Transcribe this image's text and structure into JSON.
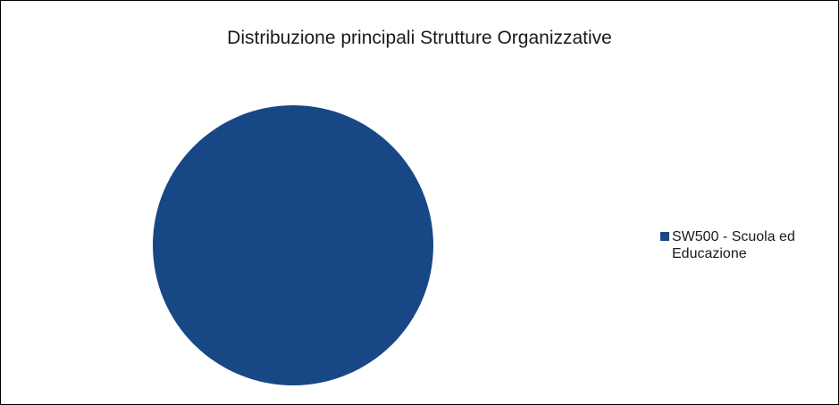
{
  "chart_data": {
    "type": "pie",
    "title": "Distribuzione principali Strutture Organizzative",
    "categories": [
      "SW500 - Scuola ed Educazione"
    ],
    "values": [
      100
    ],
    "colors": [
      "#174785"
    ],
    "legend_position": "right"
  }
}
